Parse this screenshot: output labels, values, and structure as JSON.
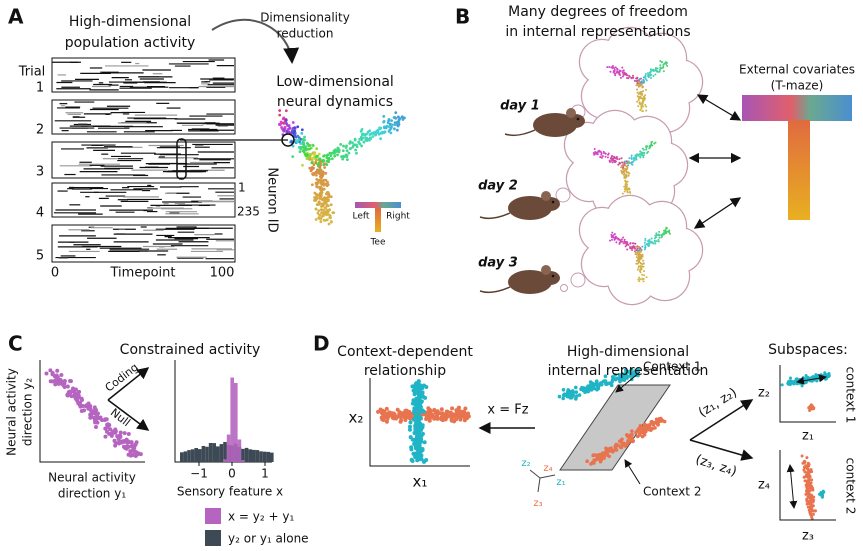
{
  "panel_a": {
    "letter": "A",
    "title": [
      "High-dimensional",
      "population activity"
    ],
    "method": [
      "Dimensionality",
      "reduction"
    ],
    "trial_label": "Trial",
    "trials": [
      "1",
      "2",
      "3",
      "4",
      "5"
    ],
    "time_ticks": [
      "0",
      "100"
    ],
    "time_label": "Timepoint",
    "neuron_ticks": [
      "1",
      "235"
    ],
    "neuron_label": "Neuron ID",
    "dynamics_title": [
      "Low-dimensional",
      "neural dynamics"
    ],
    "maze_legend": [
      "Left",
      "Right",
      "Tee"
    ]
  },
  "panel_b": {
    "letter": "B",
    "title": [
      "Many degrees of freedom",
      "in internal representations"
    ],
    "days": [
      "day 1",
      "day 2",
      "day 3"
    ],
    "covariates": [
      "External covariates",
      "(T-maze)"
    ]
  },
  "panel_c": {
    "letter": "C",
    "title": "Constrained activity",
    "y_label": [
      "Neural activity",
      "direction y₂"
    ],
    "x_label": [
      "Neural activity",
      "direction y₁"
    ],
    "directions": [
      "Coding",
      "Null"
    ],
    "hist_ticks": [
      "−1",
      "0",
      "1"
    ],
    "hist_label": "Sensory feature x",
    "legend": [
      "x = y₂ + y₁",
      "y₂ or y₁ alone"
    ]
  },
  "panel_d": {
    "letter": "D",
    "left_title": [
      "Context-dependent",
      "relationship"
    ],
    "left_axes": [
      "x₂",
      "x₁"
    ],
    "mapping": "x = Fz",
    "mid_title": [
      "High-dimensional",
      "internal representation"
    ],
    "contexts": [
      "Context 1",
      "Context 2"
    ],
    "basis": [
      "z₂",
      "z₁",
      "z₄",
      "z₃"
    ],
    "projections": [
      "(z₁, z₂)",
      "(z₃, z₄)"
    ],
    "right_title": "Subspaces:",
    "sub_axes": [
      "z₂",
      "z₁",
      "z₄",
      "z₃"
    ],
    "sub_contexts": [
      "context 1",
      "context 2"
    ]
  }
}
